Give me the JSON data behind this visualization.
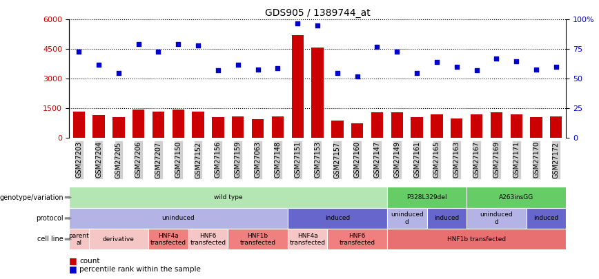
{
  "title": "GDS905 / 1389744_at",
  "samples": [
    "GSM27203",
    "GSM27204",
    "GSM27205",
    "GSM27206",
    "GSM27207",
    "GSM27150",
    "GSM27152",
    "GSM27156",
    "GSM27159",
    "GSM27063",
    "GSM27148",
    "GSM27151",
    "GSM27153",
    "GSM27157",
    "GSM27160",
    "GSM27147",
    "GSM27149",
    "GSM27161",
    "GSM27165",
    "GSM27163",
    "GSM27167",
    "GSM27169",
    "GSM27171",
    "GSM27170",
    "GSM27172"
  ],
  "counts": [
    1350,
    1150,
    1050,
    1450,
    1350,
    1450,
    1350,
    1050,
    1100,
    950,
    1100,
    5200,
    4600,
    900,
    750,
    1300,
    1300,
    1050,
    1200,
    1000,
    1200,
    1300,
    1200,
    1050,
    1100
  ],
  "percentiles": [
    73,
    62,
    55,
    79,
    73,
    79,
    78,
    57,
    62,
    58,
    59,
    97,
    95,
    55,
    52,
    77,
    73,
    55,
    64,
    60,
    57,
    67,
    65,
    58,
    60
  ],
  "bar_color": "#cc0000",
  "dot_color": "#0000cc",
  "ylim_left": [
    0,
    6000
  ],
  "ylim_right": [
    0,
    100
  ],
  "yticks_left": [
    0,
    1500,
    3000,
    4500,
    6000
  ],
  "yticks_right": [
    0,
    25,
    50,
    75,
    100
  ],
  "genotype_groups": [
    {
      "label": "wild type",
      "start": 0,
      "end": 16,
      "color": "#b3e6b3"
    },
    {
      "label": "P328L329del",
      "start": 16,
      "end": 20,
      "color": "#66cc66"
    },
    {
      "label": "A263insGG",
      "start": 20,
      "end": 25,
      "color": "#66cc66"
    }
  ],
  "protocol_groups": [
    {
      "label": "uninduced",
      "start": 0,
      "end": 11,
      "color": "#b3b3e6"
    },
    {
      "label": "induced",
      "start": 11,
      "end": 16,
      "color": "#6666cc"
    },
    {
      "label": "uninduced\nd",
      "start": 16,
      "end": 18,
      "color": "#b3b3e6"
    },
    {
      "label": "induced",
      "start": 18,
      "end": 20,
      "color": "#6666cc"
    },
    {
      "label": "uninduced\nd",
      "start": 20,
      "end": 23,
      "color": "#b3b3e6"
    },
    {
      "label": "induced",
      "start": 23,
      "end": 25,
      "color": "#6666cc"
    }
  ],
  "cellline_groups": [
    {
      "label": "parent\nal",
      "start": 0,
      "end": 1,
      "color": "#f5c6c6"
    },
    {
      "label": "derivative",
      "start": 1,
      "end": 4,
      "color": "#f5c6c6"
    },
    {
      "label": "HNF4a\ntransfected",
      "start": 4,
      "end": 6,
      "color": "#f08080"
    },
    {
      "label": "HNF6\ntransfected",
      "start": 6,
      "end": 8,
      "color": "#f5c6c6"
    },
    {
      "label": "HNF1b\ntransfected",
      "start": 8,
      "end": 11,
      "color": "#f08080"
    },
    {
      "label": "HNF4a\ntransfected",
      "start": 11,
      "end": 13,
      "color": "#f5c6c6"
    },
    {
      "label": "HNF6\ntransfected",
      "start": 13,
      "end": 16,
      "color": "#f08080"
    },
    {
      "label": "HNF1b transfected",
      "start": 16,
      "end": 25,
      "color": "#e87070"
    }
  ],
  "row_labels": [
    "genotype/variation",
    "protocol",
    "cell line"
  ],
  "legend_labels": [
    "count",
    "percentile rank within the sample"
  ],
  "legend_colors": [
    "#cc0000",
    "#0000cc"
  ]
}
